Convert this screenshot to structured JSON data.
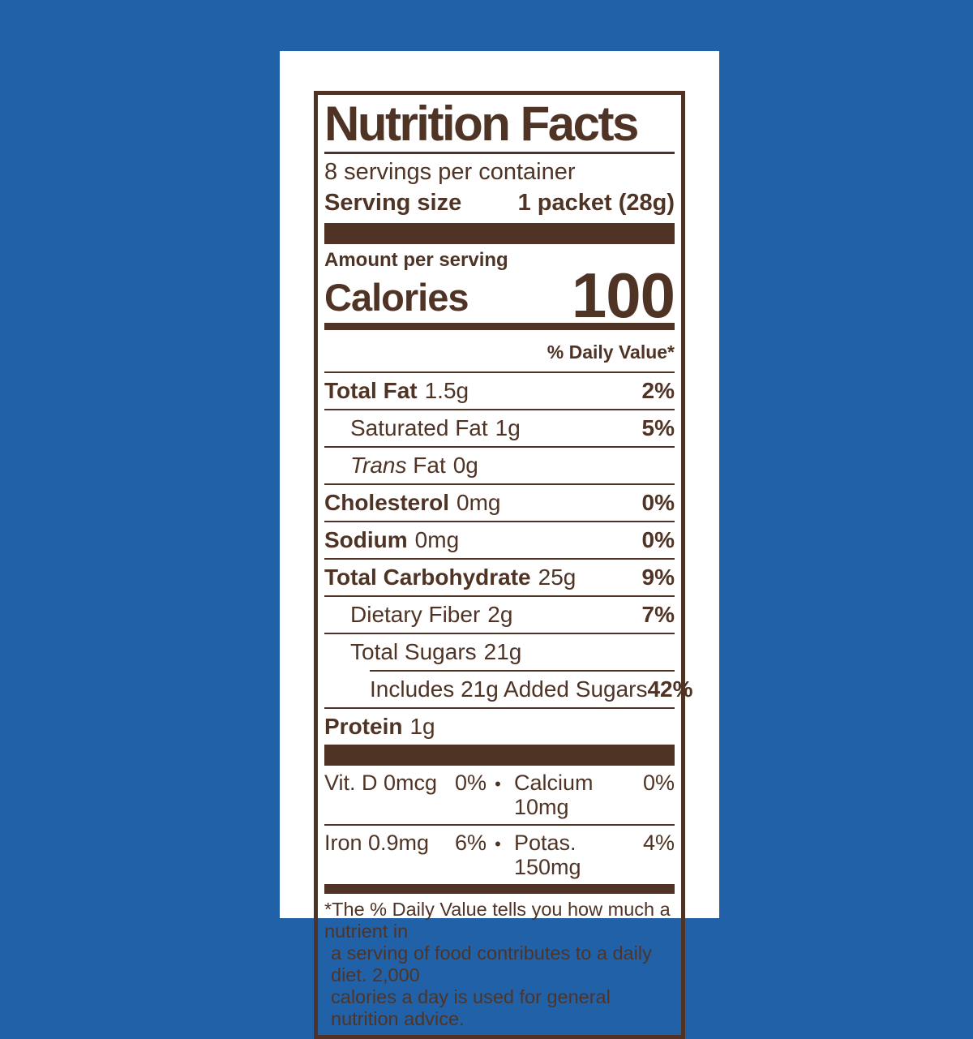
{
  "colors": {
    "background": "#2161a8",
    "card": "#ffffff",
    "ink": "#4f3426"
  },
  "label": {
    "title": "Nutrition Facts",
    "servings_per_container": "8 servings per container",
    "serving_size_label": "Serving size",
    "serving_size_value": "1 packet (28g)",
    "amount_per_serving": "Amount per serving",
    "calories_label": "Calories",
    "calories_value": "100",
    "daily_value_header": "% Daily Value*"
  },
  "nutrients": [
    {
      "name": "Total Fat",
      "amount": "1.5g",
      "dv": "2%"
    },
    {
      "name": "Saturated Fat",
      "amount": "1g",
      "dv": "5%"
    },
    {
      "name_it": "Trans",
      "name_rest": " Fat",
      "amount": "0g",
      "dv": ""
    },
    {
      "name": "Cholesterol",
      "amount": "0mg",
      "dv": "0%"
    },
    {
      "name": "Sodium",
      "amount": "0mg",
      "dv": "0%"
    },
    {
      "name": "Total Carbohydrate",
      "amount": "25g",
      "dv": "9%"
    },
    {
      "name": "Dietary Fiber",
      "amount": "2g",
      "dv": "7%"
    },
    {
      "name": "Total Sugars",
      "amount": "21g",
      "dv": ""
    },
    {
      "name": "Includes 21g Added Sugars",
      "amount": "",
      "dv": "42%"
    },
    {
      "name": "Protein",
      "amount": "1g",
      "dv": ""
    }
  ],
  "micronutrients": {
    "bullet": "•",
    "rows": [
      {
        "left_name": "Vit. D 0mcg",
        "left_dv": "0%",
        "right_name": "Calcium 10mg",
        "right_dv": "0%"
      },
      {
        "left_name": "Iron 0.9mg",
        "left_dv": "6%",
        "right_name": "Potas. 150mg",
        "right_dv": "4%"
      }
    ]
  },
  "footnote_lines": [
    "*The % Daily Value tells you how much a nutrient in",
    "a serving of food contributes to a daily diet. 2,000",
    "calories a day is used for general nutrition advice."
  ]
}
